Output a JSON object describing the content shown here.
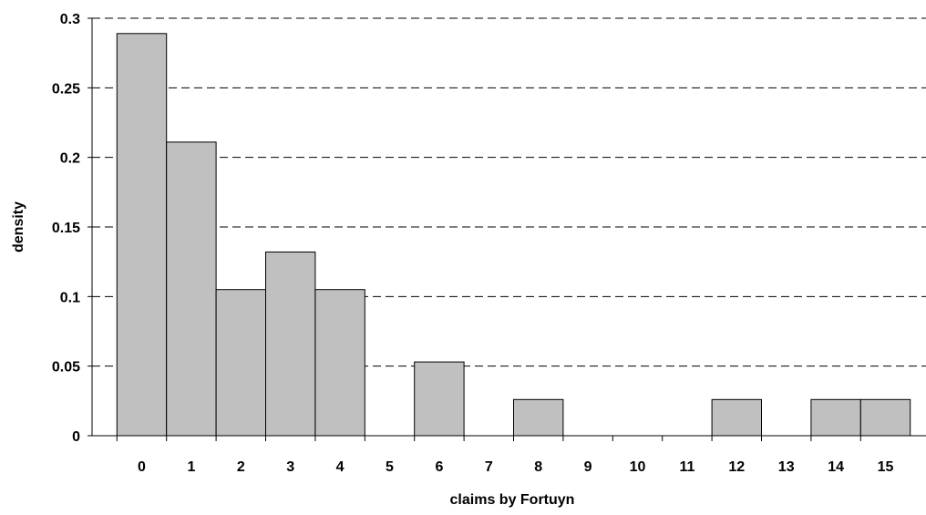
{
  "chart_data": {
    "type": "bar",
    "categories": [
      "0",
      "1",
      "2",
      "3",
      "4",
      "5",
      "6",
      "7",
      "8",
      "9",
      "10",
      "11",
      "12",
      "13",
      "14",
      "15"
    ],
    "values": [
      0.289,
      0.211,
      0.105,
      0.132,
      0.105,
      0,
      0.053,
      0,
      0.026,
      0,
      0,
      0,
      0.026,
      0,
      0.026,
      0.026
    ],
    "xlabel": "claims by Fortuyn",
    "ylabel": "density",
    "ylim": [
      0,
      0.3
    ],
    "yticks": [
      "0",
      "0.05",
      "0.1",
      "0.15",
      "0.2",
      "0.25",
      "0.3"
    ],
    "grid": "horizontal dashed",
    "bar_color": "#c0c0c0",
    "bar_edge_color": "#000000"
  }
}
